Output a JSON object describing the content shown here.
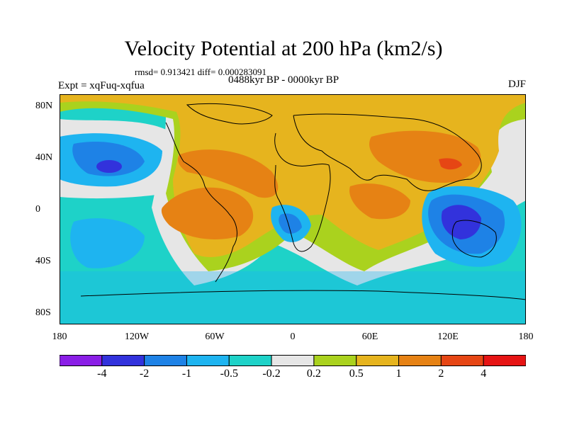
{
  "header": {
    "title": "Velocity Potential at 200 hPa (km2/s)",
    "stats": "rmsd= 0.913421 diff= 0.000283091",
    "experiment": "Expt = xqFuq-xqfua",
    "period": "0488kyr BP - 0000kyr BP",
    "season": "DJF"
  },
  "axes": {
    "x_ticks": [
      "180",
      "120W",
      "60W",
      "0",
      "60E",
      "120E",
      "180"
    ],
    "y_ticks": [
      "80N",
      "40N",
      "0",
      "40S",
      "80S"
    ]
  },
  "colorbar": {
    "labels": [
      "-4",
      "-2",
      "-1",
      "-0.5",
      "-0.2",
      "0.2",
      "0.5",
      "1",
      "2",
      "4"
    ],
    "colors": [
      "#8a1ee6",
      "#3232dc",
      "#1e82e6",
      "#1eb4f0",
      "#1ed2c8",
      "#e6e6e6",
      "#aad21e",
      "#e6b41e",
      "#e68214",
      "#e64614",
      "#e61414"
    ]
  }
}
